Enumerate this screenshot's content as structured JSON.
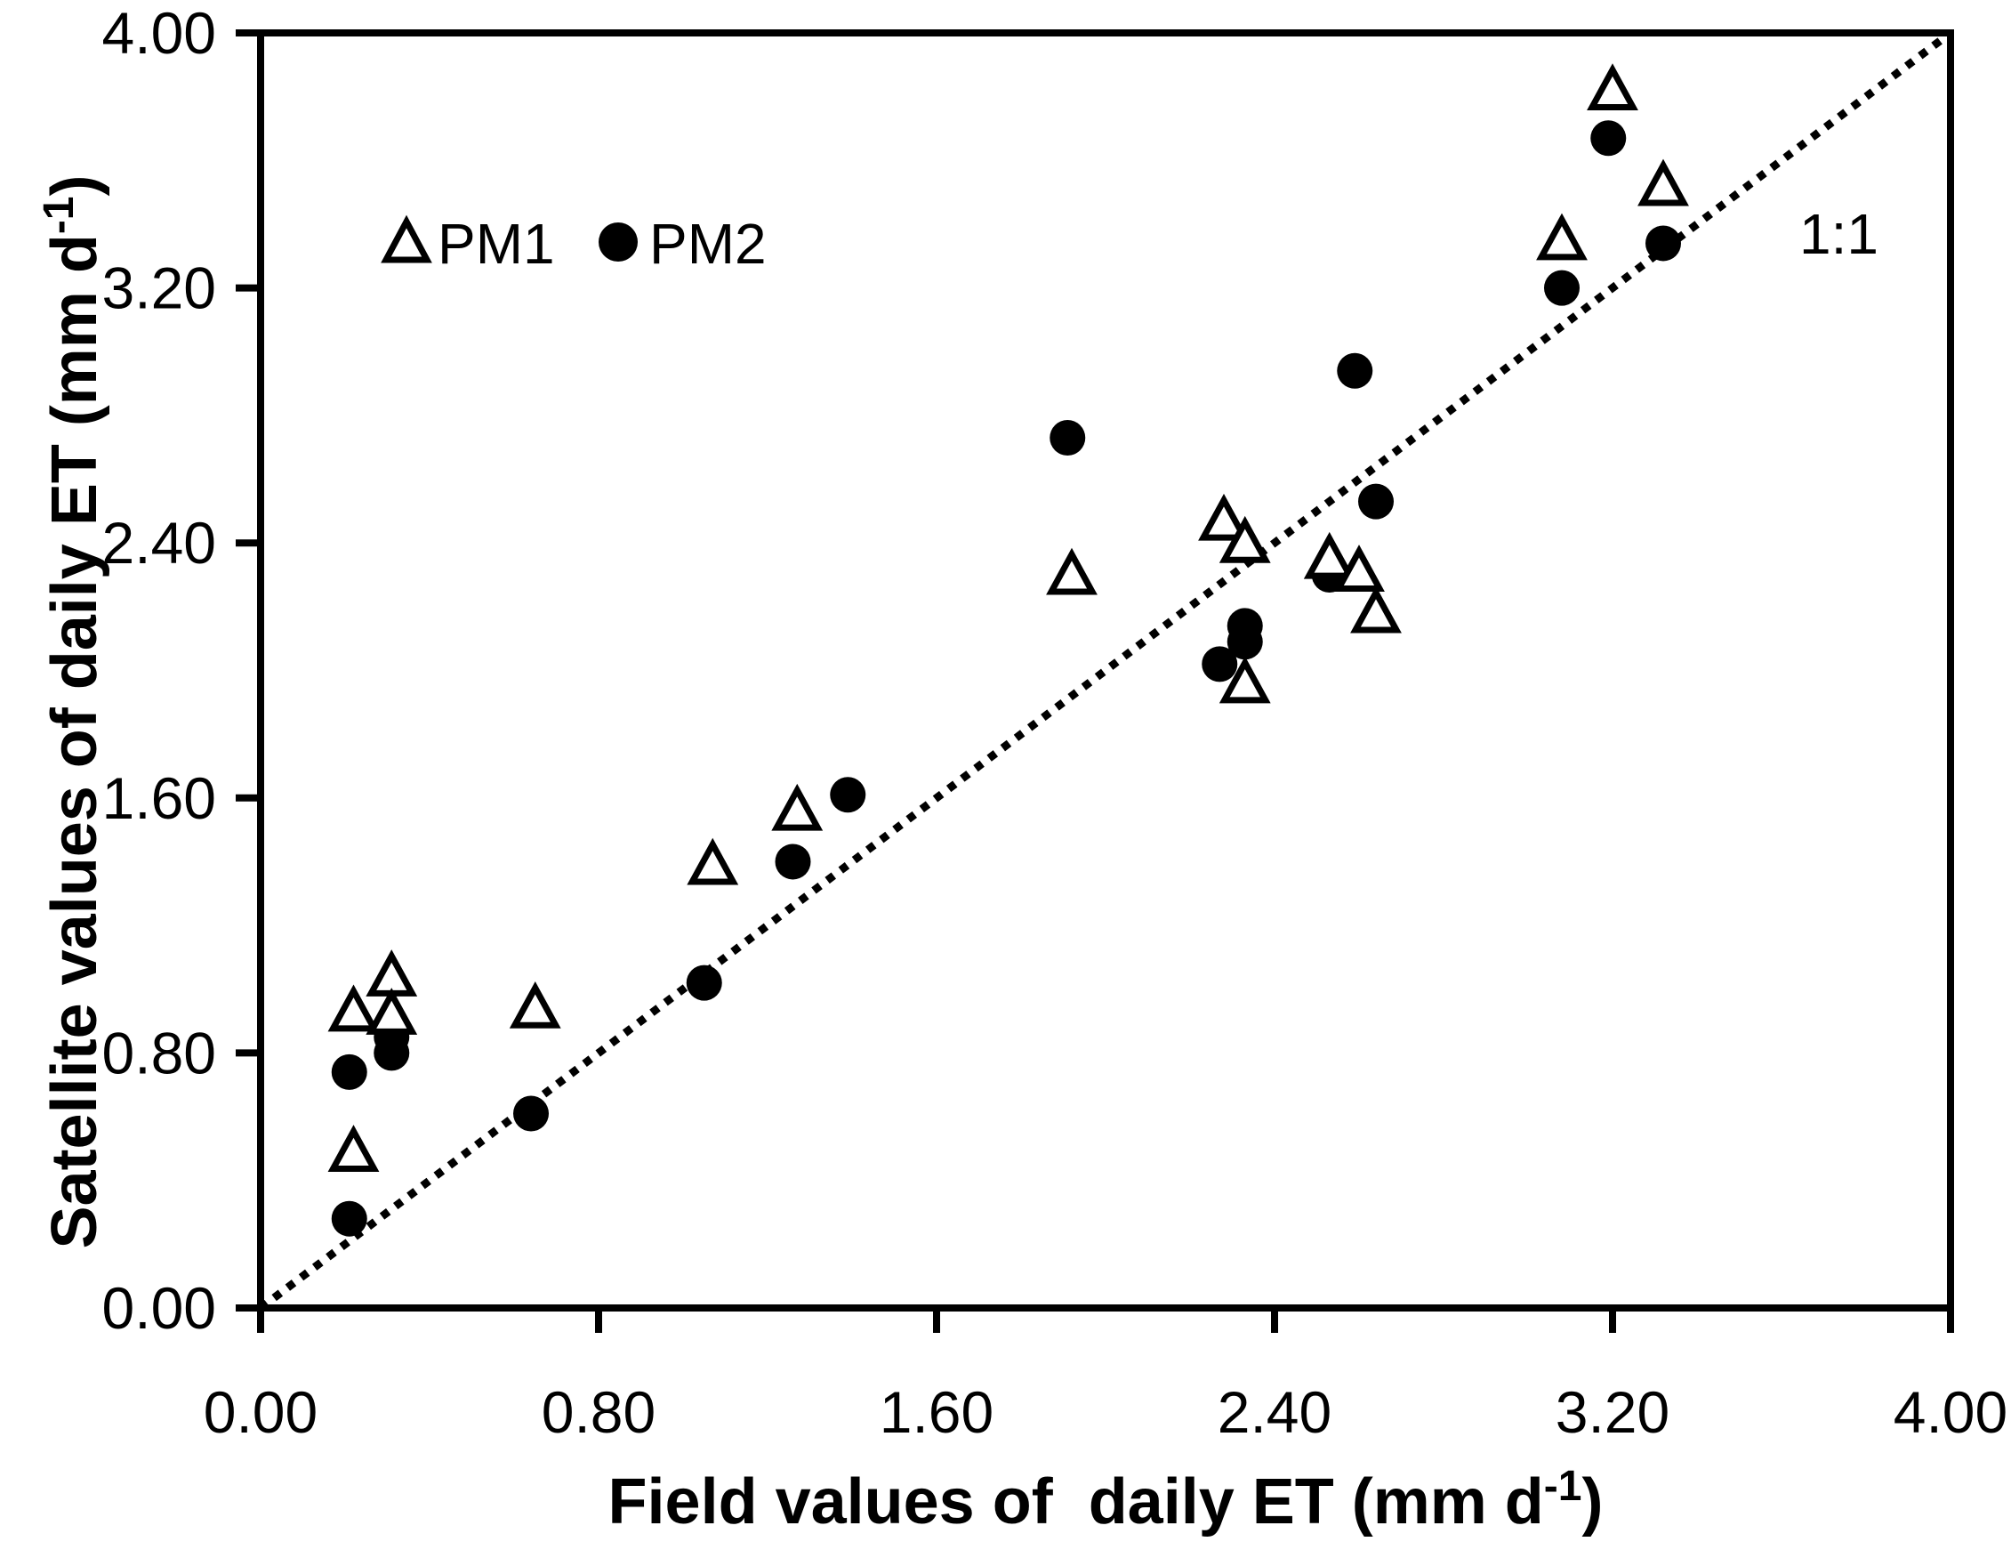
{
  "figure": {
    "background": "#ffffff",
    "ink": "#000000"
  },
  "chart_data": {
    "type": "scatter",
    "title": "",
    "xlabel": {
      "main": "Field values of  daily ET (mm d",
      "sup": "-1",
      "close": ")"
    },
    "ylabel": {
      "main": "Satellite values of daily ET (mm d",
      "sup": "-1",
      "close": ")"
    },
    "xlim": [
      0,
      4
    ],
    "ylim": [
      0,
      4
    ],
    "grid": false,
    "x_ticks": {
      "values": [
        0,
        0.8,
        1.6,
        2.4,
        3.2,
        4
      ],
      "labels": [
        "0.00",
        "0.80",
        "1.60",
        "2.40",
        "3.20",
        "4.00"
      ]
    },
    "y_ticks": {
      "values": [
        0,
        0.8,
        1.6,
        2.4,
        3.2,
        4
      ],
      "labels": [
        "0.00",
        "0.80",
        "1.60",
        "2.40",
        "3.20",
        "4.00"
      ]
    },
    "legend": {
      "position": "upper-left-inside",
      "items": [
        {
          "label": "PM1",
          "marker": "open-triangle"
        },
        {
          "label": "PM2",
          "marker": "filled-circle"
        }
      ]
    },
    "reference_line": {
      "label": "1:1",
      "from": [
        0,
        0
      ],
      "to": [
        4,
        4
      ],
      "style": "dotted"
    },
    "series": [
      {
        "name": "PM1",
        "marker": "open-triangle",
        "points": [
          [
            0.22,
            0.93
          ],
          [
            0.31,
            1.04
          ],
          [
            0.31,
            0.92
          ],
          [
            0.22,
            0.49
          ],
          [
            0.65,
            0.94
          ],
          [
            1.07,
            1.39
          ],
          [
            1.27,
            1.56
          ],
          [
            1.92,
            2.3
          ],
          [
            2.28,
            2.47
          ],
          [
            2.33,
            2.4
          ],
          [
            2.53,
            2.35
          ],
          [
            2.6,
            2.31
          ],
          [
            2.64,
            2.18
          ],
          [
            2.33,
            1.96
          ],
          [
            3.08,
            3.35
          ],
          [
            3.2,
            3.82
          ],
          [
            3.32,
            3.52
          ]
        ]
      },
      {
        "name": "PM2",
        "marker": "filled-circle",
        "points": [
          [
            0.21,
            0.74
          ],
          [
            0.31,
            0.85
          ],
          [
            0.31,
            0.8
          ],
          [
            0.21,
            0.28
          ],
          [
            0.64,
            0.61
          ],
          [
            1.05,
            1.02
          ],
          [
            1.26,
            1.4
          ],
          [
            1.39,
            1.61
          ],
          [
            1.91,
            2.73
          ],
          [
            2.59,
            2.94
          ],
          [
            2.64,
            2.53
          ],
          [
            2.53,
            2.3
          ],
          [
            2.33,
            2.14
          ],
          [
            2.33,
            2.09
          ],
          [
            2.27,
            2.02
          ],
          [
            3.08,
            3.2
          ],
          [
            3.19,
            3.67
          ],
          [
            3.32,
            3.34
          ]
        ]
      }
    ]
  }
}
